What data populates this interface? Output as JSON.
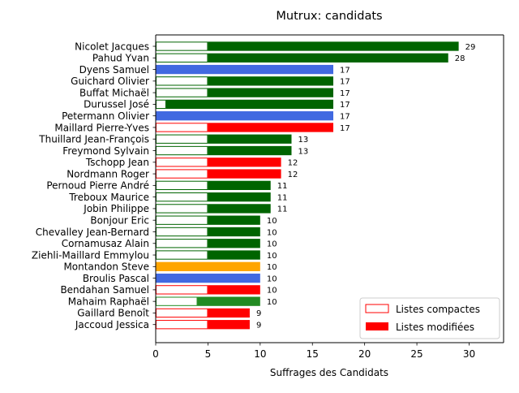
{
  "chart_data": {
    "type": "bar",
    "orientation": "horizontal",
    "title": "Mutrux: candidats",
    "xlabel": "Suffrages des Candidats",
    "ylabel": "",
    "xlim": [
      0,
      33.3
    ],
    "xticks": [
      0,
      5,
      10,
      15,
      20,
      25,
      30
    ],
    "grid": false,
    "legend_position": "lower-right",
    "legend": [
      {
        "label": "Listes compactes",
        "style": "outline",
        "color": "#ff0000"
      },
      {
        "label": "Listes modifiées",
        "style": "filled",
        "color": "#ff0000"
      }
    ],
    "candidates": [
      {
        "name": "Nicolet Jacques",
        "total": 29,
        "compact": 5,
        "color": "#006400"
      },
      {
        "name": "Pahud Yvan",
        "total": 28,
        "compact": 5,
        "color": "#006400"
      },
      {
        "name": "Dyens Samuel",
        "total": 17,
        "compact": 0,
        "color": "#4169e1"
      },
      {
        "name": "Guichard Olivier",
        "total": 17,
        "compact": 5,
        "color": "#006400"
      },
      {
        "name": "Buffat Michaël",
        "total": 17,
        "compact": 5,
        "color": "#006400"
      },
      {
        "name": "Durussel José",
        "total": 17,
        "compact": 1,
        "color": "#006400"
      },
      {
        "name": "Petermann Olivier",
        "total": 17,
        "compact": 0,
        "color": "#4169e1"
      },
      {
        "name": "Maillard Pierre-Yves",
        "total": 17,
        "compact": 5,
        "color": "#ff0000"
      },
      {
        "name": "Thuillard Jean-François",
        "total": 13,
        "compact": 5,
        "color": "#006400"
      },
      {
        "name": "Freymond Sylvain",
        "total": 13,
        "compact": 5,
        "color": "#006400"
      },
      {
        "name": "Tschopp Jean",
        "total": 12,
        "compact": 5,
        "color": "#ff0000"
      },
      {
        "name": "Nordmann Roger",
        "total": 12,
        "compact": 5,
        "color": "#ff0000"
      },
      {
        "name": "Pernoud Pierre André",
        "total": 11,
        "compact": 5,
        "color": "#006400"
      },
      {
        "name": "Treboux Maurice",
        "total": 11,
        "compact": 5,
        "color": "#006400"
      },
      {
        "name": "Jobin Philippe",
        "total": 11,
        "compact": 5,
        "color": "#006400"
      },
      {
        "name": "Bonjour Eric",
        "total": 10,
        "compact": 5,
        "color": "#006400"
      },
      {
        "name": "Chevalley Jean-Bernard",
        "total": 10,
        "compact": 5,
        "color": "#006400"
      },
      {
        "name": "Cornamusaz Alain",
        "total": 10,
        "compact": 5,
        "color": "#006400"
      },
      {
        "name": "Ziehli-Maillard Emmylou",
        "total": 10,
        "compact": 5,
        "color": "#006400"
      },
      {
        "name": "Montandon Steve",
        "total": 10,
        "compact": 0,
        "color": "#ffa500"
      },
      {
        "name": "Broulis Pascal",
        "total": 10,
        "compact": 0,
        "color": "#4169e1"
      },
      {
        "name": "Bendahan Samuel",
        "total": 10,
        "compact": 5,
        "color": "#ff0000"
      },
      {
        "name": "Mahaim Raphaël",
        "total": 10,
        "compact": 4,
        "color": "#228b22"
      },
      {
        "name": "Gaillard Benoît",
        "total": 9,
        "compact": 5,
        "color": "#ff0000"
      },
      {
        "name": "Jaccoud Jessica",
        "total": 9,
        "compact": 5,
        "color": "#ff0000"
      }
    ]
  }
}
